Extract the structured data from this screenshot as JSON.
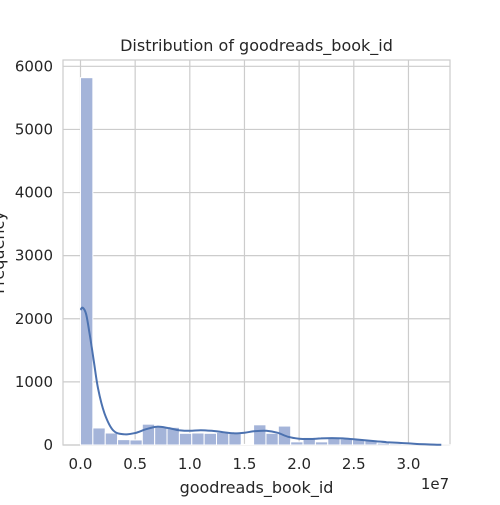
{
  "chart_data": {
    "type": "bar",
    "title": "Distribution of goodreads_book_id",
    "xlabel": "goodreads_book_id",
    "ylabel": "Frequency",
    "x_offset_label": "1e7",
    "xlim": [
      -0.16,
      3.38
    ],
    "ylim": [
      0,
      6100
    ],
    "x_scale_multiplier": 10000000,
    "x_ticks": [
      0.0,
      0.5,
      1.0,
      1.5,
      2.0,
      2.5,
      3.0
    ],
    "x_tick_labels": [
      "0.0",
      "0.5",
      "1.0",
      "1.5",
      "2.0",
      "2.5",
      "3.0"
    ],
    "y_ticks": [
      0,
      1000,
      2000,
      3000,
      4000,
      5000,
      6000
    ],
    "y_tick_labels": [
      "0",
      "1000",
      "2000",
      "3000",
      "4000",
      "5000",
      "6000"
    ],
    "grid": true,
    "bar_color": "#a4b4d9",
    "line_color": "#4c72b0",
    "bins": {
      "start": 0.0,
      "width": 0.1131,
      "counts": [
        5820,
        270,
        190,
        85,
        80,
        330,
        290,
        280,
        185,
        190,
        185,
        200,
        180,
        10,
        320,
        185,
        300,
        50,
        120,
        50,
        115,
        95,
        85,
        70,
        30,
        20,
        10,
        10,
        5,
        3
      ]
    },
    "kde": {
      "x": [
        0.0,
        0.02,
        0.05,
        0.08,
        0.12,
        0.16,
        0.22,
        0.3,
        0.4,
        0.5,
        0.6,
        0.7,
        0.8,
        0.9,
        1.0,
        1.1,
        1.2,
        1.3,
        1.4,
        1.5,
        1.6,
        1.7,
        1.8,
        1.9,
        2.0,
        2.1,
        2.2,
        2.3,
        2.4,
        2.5,
        2.6,
        2.7,
        2.8,
        2.9,
        3.0,
        3.1,
        3.2,
        3.3
      ],
      "y": [
        2140,
        2175,
        2080,
        1800,
        1350,
        900,
        500,
        230,
        170,
        190,
        250,
        290,
        270,
        235,
        225,
        235,
        225,
        205,
        185,
        195,
        220,
        225,
        195,
        130,
        100,
        95,
        105,
        110,
        105,
        90,
        75,
        60,
        45,
        35,
        25,
        15,
        8,
        3
      ]
    }
  }
}
